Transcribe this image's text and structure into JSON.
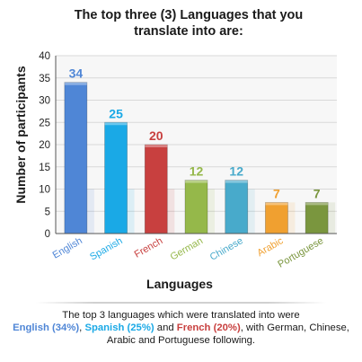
{
  "chart_data": {
    "type": "bar",
    "title": "The top three (3) Languages that you translate into are:",
    "xlabel": "Languages",
    "ylabel": "Number of participants",
    "ylim": [
      0,
      40
    ],
    "yticks": [
      0,
      5,
      10,
      15,
      20,
      25,
      30,
      35,
      40
    ],
    "grid": true,
    "legend": "none",
    "categories": [
      "English",
      "Spanish",
      "French",
      "German",
      "Chinese",
      "Arabic",
      "Portuguese"
    ],
    "values": [
      34,
      25,
      20,
      12,
      12,
      7,
      7
    ],
    "colors": [
      "#4f86d6",
      "#1aa9e6",
      "#c8403f",
      "#95b84a",
      "#48aacb",
      "#f0a030",
      "#7a963e"
    ]
  },
  "caption": {
    "line1": "The top 3 languages which were translated into were",
    "english": "English (34%)",
    "sep1": ", ",
    "spanish": "Spanish (25%)",
    "and": " and ",
    "french": "French (20%)",
    "rest": ", with German, Chinese, Arabic and Portuguese following.",
    "english_color": "#4f86d6",
    "spanish_color": "#1aa9e6",
    "french_color": "#c8403f"
  }
}
